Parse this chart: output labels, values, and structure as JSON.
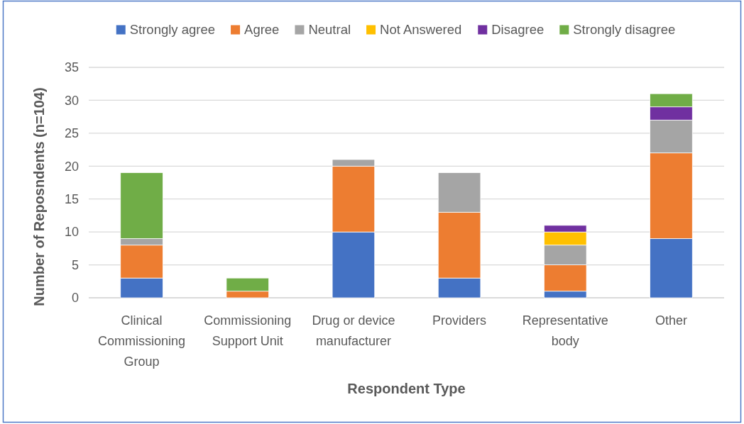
{
  "chart_data": {
    "type": "bar",
    "stacked": true,
    "categories": [
      "Clinical Commissioning Group",
      "Commissioning Support Unit",
      "Drug or device manufacturer",
      "Providers",
      "Representative body",
      "Other"
    ],
    "series": [
      {
        "name": "Strongly agree",
        "color": "#4472c4",
        "values": [
          3,
          0,
          10,
          3,
          1,
          9
        ]
      },
      {
        "name": "Agree",
        "color": "#ed7d31",
        "values": [
          5,
          1,
          10,
          10,
          4,
          13
        ]
      },
      {
        "name": "Neutral",
        "color": "#a5a5a5",
        "values": [
          1,
          0,
          1,
          6,
          3,
          5
        ]
      },
      {
        "name": "Not Answered",
        "color": "#ffc000",
        "values": [
          0,
          0,
          0,
          0,
          2,
          0
        ]
      },
      {
        "name": "Disagree",
        "color": "#7030a0",
        "values": [
          0,
          0,
          0,
          0,
          1,
          2
        ]
      },
      {
        "name": "Strongly disagree",
        "color": "#70ad47",
        "values": [
          10,
          2,
          0,
          0,
          0,
          2
        ]
      }
    ],
    "xlabel": "Respondent Type",
    "ylabel": "Number of Reposndents (n=104)",
    "ylim": [
      0,
      35
    ],
    "yticks": [
      0,
      5,
      10,
      15,
      20,
      25,
      30,
      35
    ],
    "grid": "y",
    "legend": "top"
  }
}
